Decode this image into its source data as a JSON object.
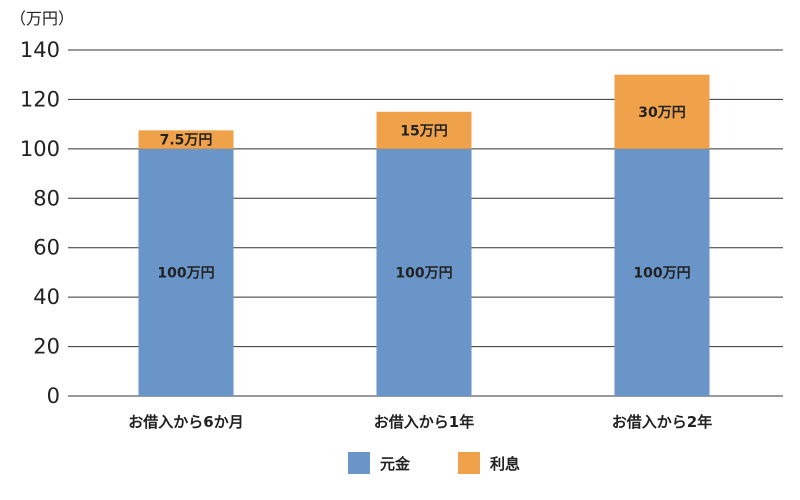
{
  "chart_data": {
    "type": "bar",
    "stacked": true,
    "unit_label": "（万円）",
    "categories": [
      "お借入から6か月",
      "お借入から1年",
      "お借入から2年"
    ],
    "series": [
      {
        "name": "元金",
        "color": "#6a95c8",
        "values": [
          100,
          100,
          100
        ],
        "labels": [
          "100万円",
          "100万円",
          "100万円"
        ]
      },
      {
        "name": "利息",
        "color": "#f0a24b",
        "values": [
          7.5,
          15,
          30
        ],
        "labels": [
          "7.5万円",
          "15万円",
          "30万円"
        ]
      }
    ],
    "ylim": [
      0,
      140
    ],
    "yticks": [
      0,
      20,
      40,
      60,
      80,
      100,
      120,
      140
    ],
    "grid": true,
    "legend_position": "bottom-center"
  }
}
